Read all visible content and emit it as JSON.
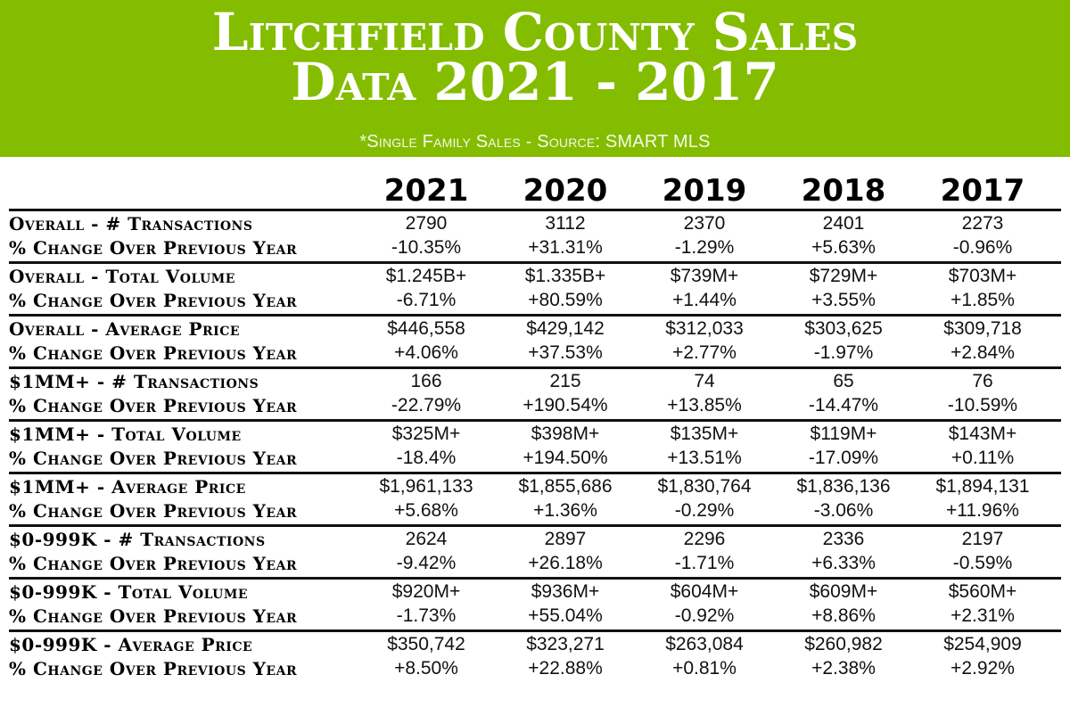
{
  "header": {
    "title_line1": "Litchfield County Sales",
    "title_line2": "Data 2021 - 2017",
    "subtitle": "*Single Family Sales - Source: SMART MLS",
    "background_color": "#84bd00"
  },
  "table": {
    "years": [
      "2021",
      "2020",
      "2019",
      "2018",
      "2017"
    ],
    "change_label": "% Change Over Previous Year",
    "groups": [
      {
        "label": "Overall - # Transactions",
        "values": [
          "2790",
          "3112",
          "2370",
          "2401",
          "2273"
        ],
        "changes": [
          "-10.35%",
          "+31.31%",
          "-1.29%",
          "+5.63%",
          "-0.96%"
        ]
      },
      {
        "label": "Overall - Total Volume",
        "values": [
          "$1.245B+",
          "$1.335B+",
          "$739M+",
          "$729M+",
          "$703M+"
        ],
        "changes": [
          "-6.71%",
          "+80.59%",
          "+1.44%",
          "+3.55%",
          "+1.85%"
        ]
      },
      {
        "label": "Overall - Average Price",
        "values": [
          "$446,558",
          "$429,142",
          "$312,033",
          "$303,625",
          "$309,718"
        ],
        "changes": [
          "+4.06%",
          "+37.53%",
          "+2.77%",
          "-1.97%",
          "+2.84%"
        ]
      },
      {
        "label": "$1MM+ - # Transactions",
        "values": [
          "166",
          "215",
          "74",
          "65",
          "76"
        ],
        "changes": [
          "-22.79%",
          "+190.54%",
          "+13.85%",
          "-14.47%",
          "-10.59%"
        ]
      },
      {
        "label": "$1MM+ - Total Volume",
        "values": [
          "$325M+",
          "$398M+",
          "$135M+",
          "$119M+",
          "$143M+"
        ],
        "changes": [
          "-18.4%",
          "+194.50%",
          "+13.51%",
          "-17.09%",
          "+0.11%"
        ]
      },
      {
        "label": "$1MM+ - Average Price",
        "values": [
          "$1,961,133",
          "$1,855,686",
          "$1,830,764",
          "$1,836,136",
          "$1,894,131"
        ],
        "changes": [
          "+5.68%",
          "+1.36%",
          "-0.29%",
          "-3.06%",
          "+11.96%"
        ]
      },
      {
        "label": "$0-999K - # Transactions",
        "values": [
          "2624",
          "2897",
          "2296",
          "2336",
          "2197"
        ],
        "changes": [
          "-9.42%",
          "+26.18%",
          "-1.71%",
          "+6.33%",
          "-0.59%"
        ]
      },
      {
        "label": "$0-999K - Total Volume",
        "values": [
          "$920M+",
          "$936M+",
          "$604M+",
          "$609M+",
          "$560M+"
        ],
        "changes": [
          "-1.73%",
          "+55.04%",
          "-0.92%",
          "+8.86%",
          "+2.31%"
        ]
      },
      {
        "label": "$0-999K - Average Price",
        "values": [
          "$350,742",
          "$323,271",
          "$263,084",
          "$260,982",
          "$254,909"
        ],
        "changes": [
          "+8.50%",
          "+22.88%",
          "+0.81%",
          "+2.38%",
          "+2.92%"
        ]
      }
    ]
  }
}
